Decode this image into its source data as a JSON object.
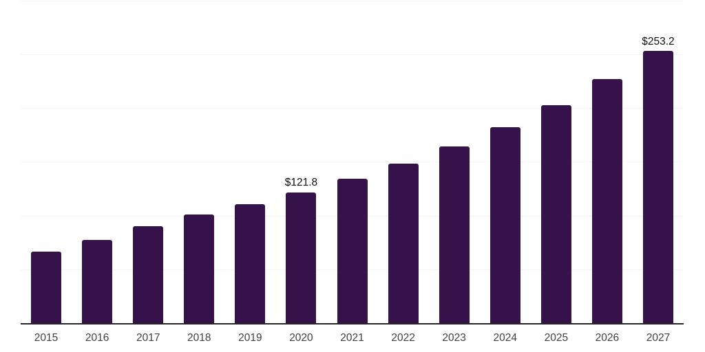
{
  "chart_data": {
    "type": "bar",
    "title": "",
    "xlabel": "",
    "ylabel": "",
    "categories": [
      "2015",
      "2016",
      "2017",
      "2018",
      "2019",
      "2020",
      "2021",
      "2022",
      "2023",
      "2024",
      "2025",
      "2026",
      "2027"
    ],
    "values": [
      66.5,
      77.6,
      90.2,
      101.1,
      110.7,
      121.8,
      134.3,
      148.4,
      164.4,
      182.3,
      202.8,
      227.0,
      253.2
    ],
    "data_labels": [
      "",
      "",
      "",
      "",
      "",
      "$121.8",
      "",
      "",
      "",
      "",
      "",
      "",
      "$253.2"
    ],
    "ylim": [
      0,
      300
    ],
    "gridline_values": [
      50,
      100,
      150,
      200,
      250,
      300
    ],
    "grid": true,
    "legend": false,
    "y_tick_labels_visible": false,
    "colors": {
      "bar": "#351249",
      "axis": "#262626",
      "gridline": "#f3f3f3",
      "x_tick_label": "#404040",
      "data_label": "#0d0d0d",
      "background": "#ffffff"
    }
  }
}
